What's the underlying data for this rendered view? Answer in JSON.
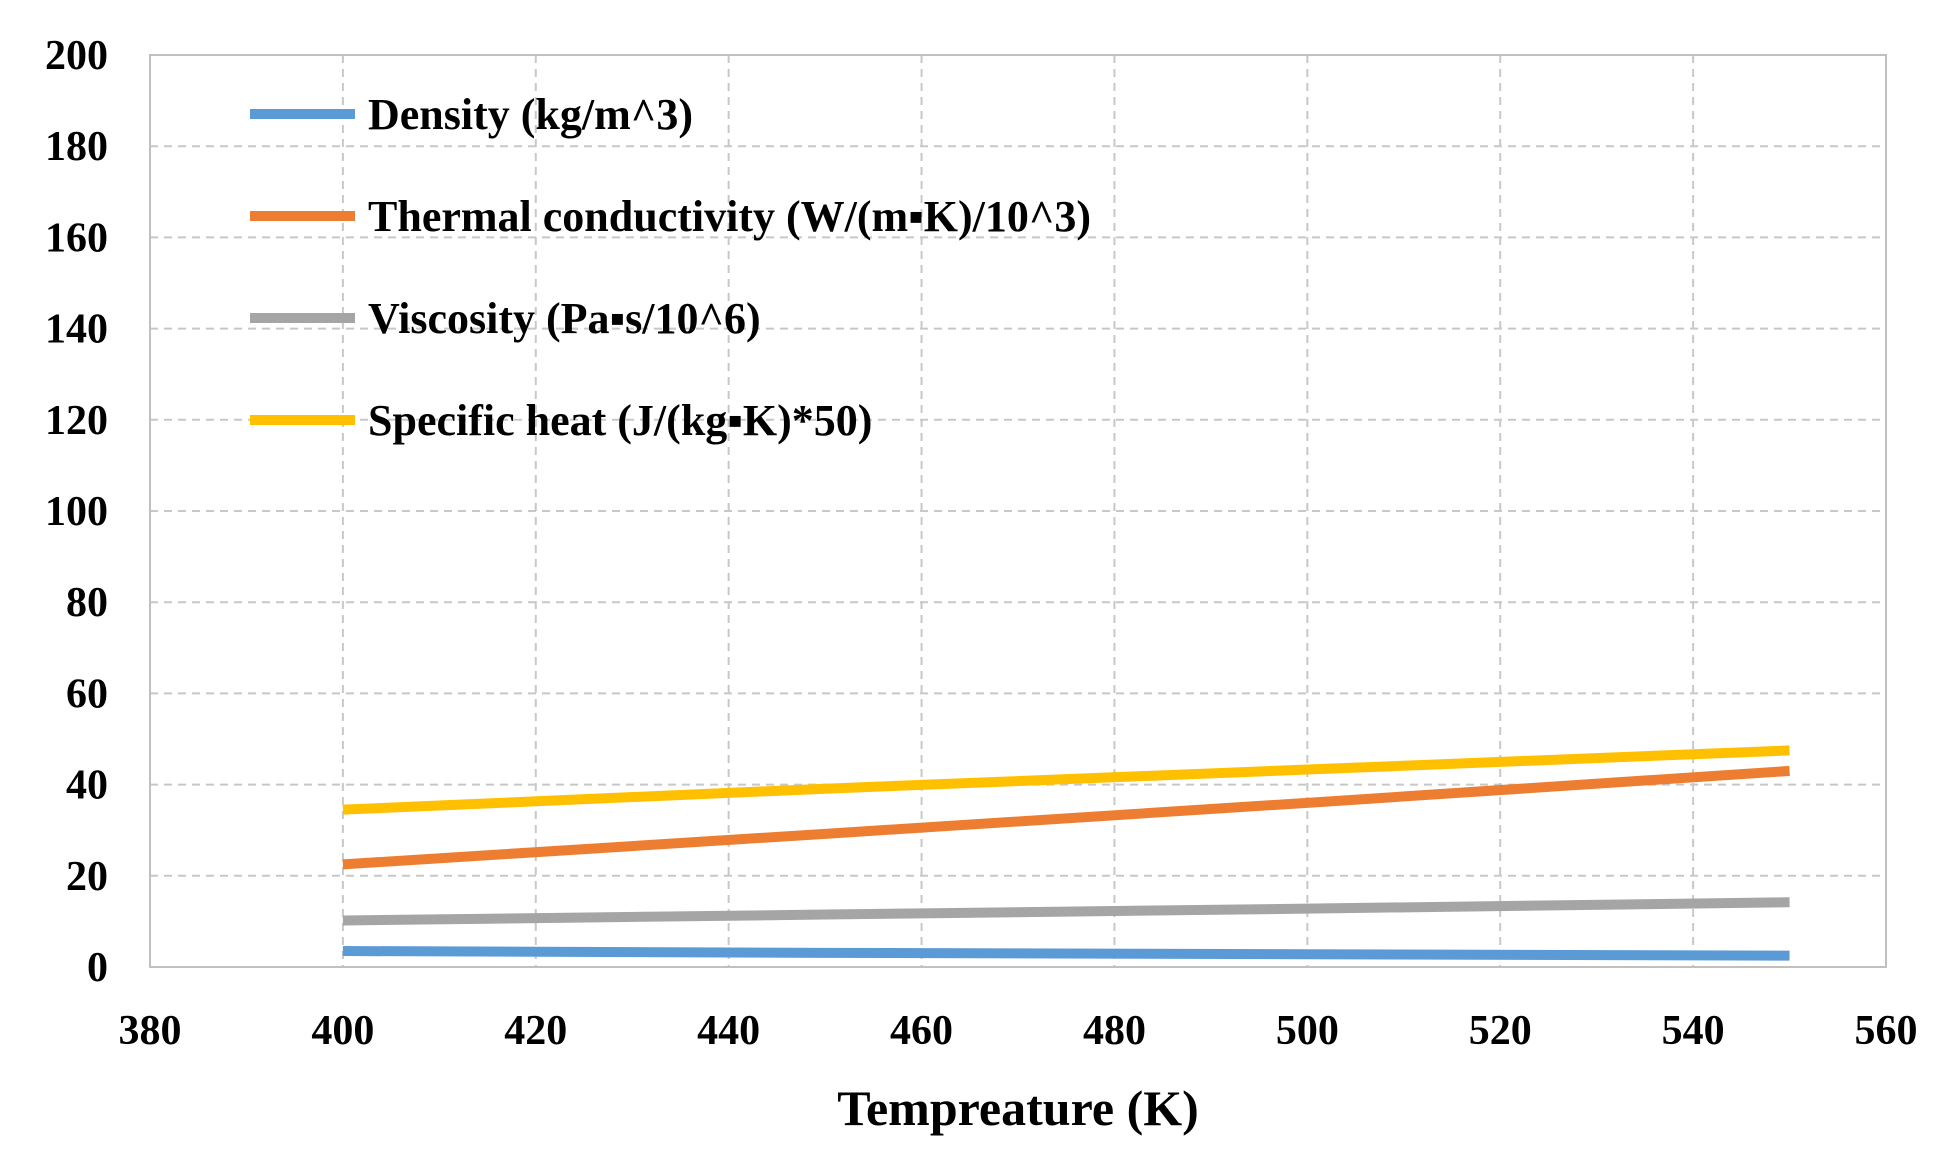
{
  "chart_data": {
    "type": "line",
    "title": "",
    "xlabel": "Tempreature (K)",
    "ylabel": "",
    "xlim": [
      380,
      560
    ],
    "ylim": [
      0,
      200
    ],
    "x_ticks": [
      "380",
      "400",
      "420",
      "440",
      "460",
      "480",
      "500",
      "520",
      "540",
      "560"
    ],
    "y_ticks": [
      "0",
      "20",
      "40",
      "60",
      "80",
      "100",
      "120",
      "140",
      "160",
      "180",
      "200"
    ],
    "grid": true,
    "legend_position": "top-left",
    "x": [
      400,
      450,
      500,
      550
    ],
    "series": [
      {
        "name": "Density (kg/m^3)",
        "color": "#5B9BD5",
        "values": [
          3.5,
          3.1,
          2.8,
          2.5
        ]
      },
      {
        "name": "Thermal conductivity (W/(m▪K)/10^3)",
        "color": "#ED7D31",
        "values": [
          22.5,
          29.2,
          36,
          43
        ]
      },
      {
        "name": "Viscosity (Pa▪s/10^6)",
        "color": "#A5A5A5",
        "values": [
          10.2,
          11.5,
          12.8,
          14.2
        ]
      },
      {
        "name": "Specific heat (J/(kg▪K)*50)",
        "color": "#FFC000",
        "values": [
          34.5,
          39.1,
          43.3,
          47.5
        ]
      }
    ]
  }
}
